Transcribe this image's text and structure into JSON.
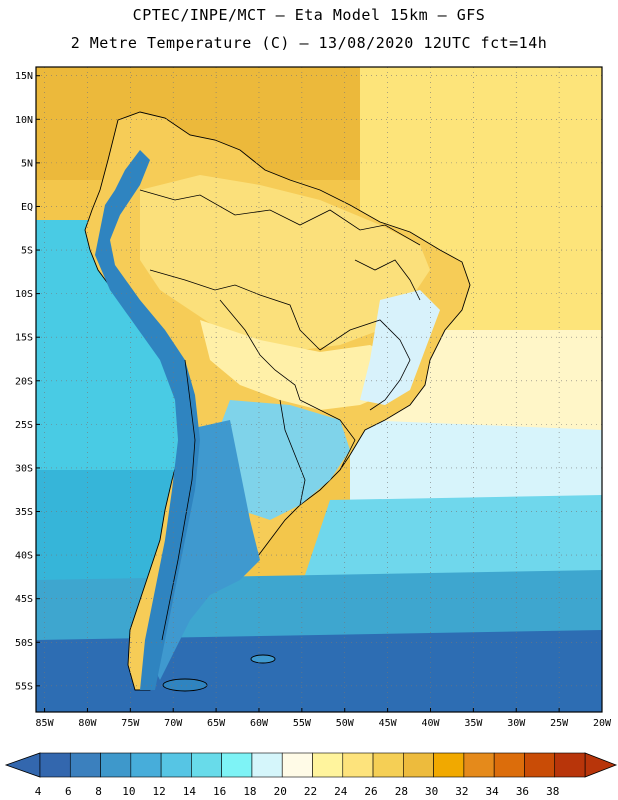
{
  "header": {
    "line1": "CPTEC/INPE/MCT –  Eta Model 15km – GFS",
    "line2": "2 Metre Temperature (C) – 13/08/2020 12UTC fct=14h"
  },
  "map": {
    "lat_labels": [
      "15N",
      "10N",
      "5N",
      "EQ",
      "5S",
      "10S",
      "15S",
      "20S",
      "25S",
      "30S",
      "35S",
      "40S",
      "45S",
      "50S",
      "55S"
    ],
    "lat_values": [
      15,
      10,
      5,
      0,
      -5,
      -10,
      -15,
      -20,
      -25,
      -30,
      -35,
      -40,
      -45,
      -50,
      -55
    ],
    "lon_labels": [
      "85W",
      "80W",
      "75W",
      "70W",
      "65W",
      "60W",
      "55W",
      "50W",
      "45W",
      "40W",
      "35W",
      "30W",
      "25W",
      "20W"
    ],
    "lon_values": [
      -85,
      -80,
      -75,
      -70,
      -65,
      -60,
      -55,
      -50,
      -45,
      -40,
      -35,
      -30,
      -25,
      -20
    ],
    "extent": {
      "lon_min": -86,
      "lon_max": -20,
      "lat_min": -58,
      "lat_max": 16
    },
    "regions": {
      "ocean_north": "#f3c64b",
      "caribbean": "#ecb93b",
      "atlantic_tropical": "#fde47a",
      "atlantic_subtropical": "#fff6c8",
      "atlantic_cool": "#d7f4fb",
      "atlantic_cold": "#6fd7ec",
      "southern_ocean": "#3ea6cf",
      "far_south": "#2d6db3",
      "pacific_warm": "#49cbe4",
      "pacific_cool": "#36b5d9",
      "land_warm": "#f6cc57",
      "land_amazon": "#fbe07b",
      "land_central": "#fff0a8",
      "andes": "#2f84c0",
      "patagonia": "#3f99cf",
      "pampas": "#7fd3ea",
      "brazil_highland": "#d8f2fb"
    }
  },
  "colorbar": {
    "ticks": [
      "4",
      "6",
      "8",
      "10",
      "12",
      "14",
      "16",
      "18",
      "20",
      "22",
      "24",
      "26",
      "28",
      "30",
      "32",
      "34",
      "36",
      "38"
    ],
    "colors": [
      "#3367ae",
      "#3b80be",
      "#3e98cb",
      "#47adda",
      "#56c5e4",
      "#68dbea",
      "#7ef3f6",
      "#d5f6fb",
      "#fffbe7",
      "#fff49d",
      "#fde37c",
      "#f5cf55",
      "#edbb3d",
      "#f1a900",
      "#e58a1b",
      "#dc6d0b",
      "#c94c06",
      "#b8350a"
    ],
    "left_arrow_color": "#3367ae",
    "right_arrow_color": "#b8350a"
  }
}
